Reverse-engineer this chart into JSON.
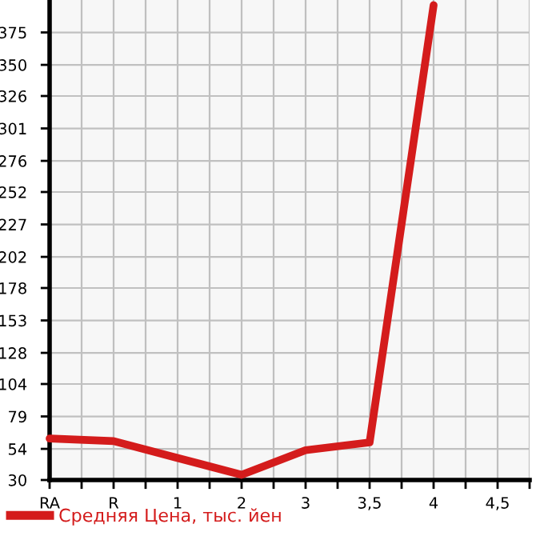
{
  "chart_data": {
    "type": "line",
    "categories": [
      "RA",
      "R",
      "1",
      "2",
      "3",
      "3,5",
      "4",
      "4,5"
    ],
    "series": [
      {
        "name": "Средняя Цена, тыс. йен",
        "color": "#d41c1c",
        "values": [
          62,
          60,
          47,
          34,
          53,
          59,
          396,
          null
        ]
      }
    ],
    "ylim": [
      30,
      400
    ],
    "yticks": [
      30,
      54,
      79,
      104,
      128,
      153,
      178,
      202,
      227,
      252,
      276,
      301,
      326,
      350,
      375
    ],
    "grid": true,
    "legend": "bottom left",
    "marker": "none",
    "line_style": "solid"
  }
}
